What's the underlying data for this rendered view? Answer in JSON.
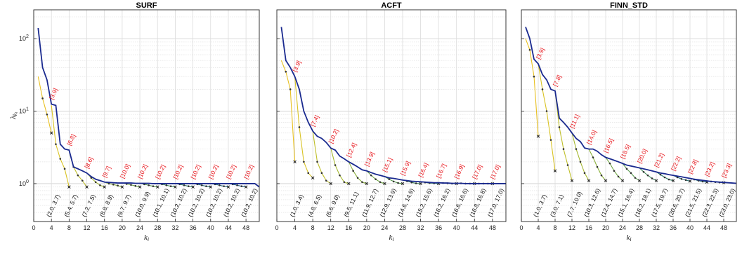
{
  "figure": {
    "ylabel": "λ_{k_i}",
    "xlabel": "k_i",
    "colors": {
      "axis": "#222222",
      "grid": "#d9d9d9",
      "main_line": "#1a2a8f",
      "red_label": "#e8141a",
      "yellow": "#e8c020",
      "green": "#2a8a6a",
      "teal": "#1a7a8a"
    }
  },
  "chart_data": [
    {
      "type": "line",
      "title": "SURF",
      "xlabel": "k_i",
      "ylabel": "λ_{k_i}",
      "xlim": [
        0,
        51
      ],
      "ylim": [
        0.3,
        250
      ],
      "yscale": "log",
      "grid": true,
      "xticks": [
        "0",
        "4",
        "8",
        "12",
        "16",
        "20",
        "24",
        "28",
        "32",
        "36",
        "40",
        "44",
        "48"
      ],
      "yticks": [
        "10^0",
        "10^1",
        "10^2"
      ],
      "main_series": {
        "x": [
          1,
          2,
          3,
          4,
          5,
          6,
          7,
          8,
          9,
          10,
          11,
          12,
          13,
          14,
          15,
          16,
          17,
          18,
          19,
          20,
          21,
          22,
          23,
          24,
          25,
          26,
          27,
          28,
          29,
          30,
          31,
          32,
          33,
          34,
          35,
          36,
          37,
          38,
          39,
          40,
          41,
          42,
          43,
          44,
          45,
          46,
          47,
          48,
          49,
          50,
          51
        ],
        "y": [
          140,
          40,
          27,
          12.5,
          12,
          3.5,
          3.0,
          2.9,
          1.7,
          1.6,
          1.5,
          1.4,
          1.25,
          1.15,
          1.1,
          1.05,
          1.04,
          1.03,
          1.02,
          1.02,
          1.02,
          1.02,
          1.01,
          1.01,
          1.01,
          1.01,
          1.0,
          1.0,
          1.0,
          1.0,
          1.0,
          1.0,
          1.0,
          1.0,
          1.0,
          1.0,
          1.0,
          1.0,
          1.0,
          1.0,
          1.0,
          1.0,
          1.0,
          1.0,
          1.0,
          1.0,
          1.0,
          1.0,
          1.0,
          1.0,
          0.9
        ]
      },
      "branches": [
        {
          "x": [
            1,
            2,
            3,
            4
          ],
          "y": [
            30,
            15,
            9,
            5.0
          ],
          "label": "(2.0, 3.7)"
        },
        {
          "x": [
            4,
            5,
            6,
            7,
            8
          ],
          "y": [
            12,
            3.5,
            2.2,
            1.6,
            0.9
          ],
          "label": "(5.4, 5.7)"
        },
        {
          "x": [
            8,
            9,
            10,
            11,
            12
          ],
          "y": [
            2.9,
            1.7,
            1.3,
            1.1,
            0.9
          ],
          "label": "(7.2, 7.5)"
        },
        {
          "x": [
            12,
            13,
            14,
            15,
            16
          ],
          "y": [
            1.4,
            1.2,
            1.05,
            0.95,
            0.9
          ],
          "label": "(8.8, 8.9)"
        },
        {
          "x": [
            16,
            17,
            18,
            19,
            20
          ],
          "y": [
            1.05,
            1.0,
            0.97,
            0.94,
            0.9
          ],
          "label": "(9.7, 9.7)"
        },
        {
          "x": [
            20,
            21,
            22,
            23,
            24
          ],
          "y": [
            1.02,
            0.99,
            0.96,
            0.93,
            0.9
          ],
          "label": "(10.0, 9.9)"
        },
        {
          "x": [
            24,
            25,
            26,
            27,
            28
          ],
          "y": [
            1.01,
            0.98,
            0.95,
            0.92,
            0.9
          ],
          "label": "(10.1, 10.1)"
        },
        {
          "x": [
            28,
            29,
            30,
            31,
            32
          ],
          "y": [
            1.0,
            0.98,
            0.95,
            0.92,
            0.9
          ],
          "label": "(10.2, 10.2)"
        },
        {
          "x": [
            32,
            33,
            34,
            35,
            36
          ],
          "y": [
            1.0,
            0.98,
            0.95,
            0.92,
            0.9
          ],
          "label": "(10.2, 10.2)"
        },
        {
          "x": [
            36,
            37,
            38,
            39,
            40
          ],
          "y": [
            1.0,
            0.98,
            0.95,
            0.92,
            0.9
          ],
          "label": "(10.2, 10.2)"
        },
        {
          "x": [
            40,
            41,
            42,
            43,
            44
          ],
          "y": [
            1.0,
            0.98,
            0.95,
            0.92,
            0.9
          ],
          "label": "(10.2, 10.2)"
        },
        {
          "x": [
            44,
            45,
            46,
            47,
            48
          ],
          "y": [
            1.0,
            0.98,
            0.95,
            0.92,
            0.9
          ],
          "label": "(10.2, 10.2)"
        }
      ],
      "red_labels": [
        {
          "x": 4,
          "text": "[3.9]"
        },
        {
          "x": 8,
          "text": "[6.8]"
        },
        {
          "x": 12,
          "text": "[8.6]"
        },
        {
          "x": 16,
          "text": "[9.7]"
        },
        {
          "x": 20,
          "text": "[10.0]"
        },
        {
          "x": 24,
          "text": "[10.2]"
        },
        {
          "x": 28,
          "text": "[10.2]"
        },
        {
          "x": 32,
          "text": "[10.2]"
        },
        {
          "x": 36,
          "text": "[10.2]"
        },
        {
          "x": 40,
          "text": "[10.2]"
        },
        {
          "x": 44,
          "text": "[10.2]"
        },
        {
          "x": 48,
          "text": "[10.2]"
        }
      ]
    },
    {
      "type": "line",
      "title": "ACFT",
      "xlabel": "k_i",
      "ylabel": "",
      "xlim": [
        0,
        51
      ],
      "ylim": [
        0.3,
        250
      ],
      "yscale": "log",
      "grid": true,
      "xticks": [
        "0",
        "4",
        "8",
        "12",
        "16",
        "20",
        "24",
        "28",
        "32",
        "36",
        "40",
        "44",
        "48"
      ],
      "yticks": [],
      "main_series": {
        "x": [
          1,
          2,
          3,
          4,
          5,
          6,
          7,
          8,
          9,
          10,
          11,
          12,
          13,
          14,
          15,
          16,
          17,
          18,
          19,
          20,
          21,
          22,
          23,
          24,
          25,
          26,
          27,
          28,
          29,
          30,
          31,
          32,
          33,
          34,
          35,
          36,
          37,
          38,
          39,
          40,
          41,
          42,
          43,
          44,
          45,
          46,
          47,
          48,
          49,
          50,
          51
        ],
        "y": [
          145,
          50,
          40,
          30,
          20,
          10,
          7,
          5.3,
          4.5,
          4.2,
          3.7,
          3.1,
          2.9,
          2.4,
          2.2,
          2.0,
          1.85,
          1.7,
          1.55,
          1.5,
          1.42,
          1.35,
          1.3,
          1.25,
          1.2,
          1.18,
          1.15,
          1.12,
          1.1,
          1.08,
          1.07,
          1.06,
          1.05,
          1.04,
          1.03,
          1.03,
          1.02,
          1.02,
          1.01,
          1.01,
          1.01,
          1.0,
          1.0,
          1.0,
          1.0,
          1.0,
          1.0,
          1.0,
          1.0,
          1.0,
          1.0
        ]
      },
      "branches": [
        {
          "x": [
            1,
            2,
            3,
            4
          ],
          "y": [
            50,
            35,
            20,
            2.0
          ],
          "label": "(1.0, 3.4)"
        },
        {
          "x": [
            4,
            5,
            6,
            7,
            8
          ],
          "y": [
            30,
            6,
            2.0,
            1.4,
            1.2
          ],
          "label": "(4.8, 6.5)"
        },
        {
          "x": [
            8,
            9,
            10,
            11,
            12
          ],
          "y": [
            5.3,
            2.0,
            1.4,
            1.1,
            1.0
          ],
          "label": "(6.6, 9.0)"
        },
        {
          "x": [
            12,
            13,
            14,
            15,
            16
          ],
          "y": [
            3.1,
            1.8,
            1.3,
            1.05,
            1.0
          ],
          "label": "(9.5, 11.1)"
        },
        {
          "x": [
            16,
            17,
            18,
            19,
            20
          ],
          "y": [
            2.0,
            1.5,
            1.2,
            1.05,
            1.0
          ],
          "label": "(11.9, 12.7)"
        },
        {
          "x": [
            20,
            21,
            22,
            23,
            24
          ],
          "y": [
            1.5,
            1.3,
            1.15,
            1.05,
            1.0
          ],
          "label": "(12.9, 13.9)"
        },
        {
          "x": [
            24,
            25,
            26,
            27,
            28
          ],
          "y": [
            1.25,
            1.15,
            1.07,
            1.02,
            1.0
          ],
          "label": "(14.6, 14.9)"
        },
        {
          "x": [
            28,
            29,
            30,
            31,
            32
          ],
          "y": [
            1.12,
            1.08,
            1.04,
            1.01,
            1.0
          ],
          "label": "(15.2, 15.6)"
        },
        {
          "x": [
            32,
            33,
            34,
            35,
            36
          ],
          "y": [
            1.06,
            1.04,
            1.02,
            1.01,
            1.0
          ],
          "label": "(16.2, 16.2)"
        },
        {
          "x": [
            36,
            37,
            38,
            39,
            40
          ],
          "y": [
            1.03,
            1.02,
            1.01,
            1.0,
            1.0
          ],
          "label": "(16.6, 16.6)"
        },
        {
          "x": [
            40,
            41,
            42,
            43,
            44
          ],
          "y": [
            1.01,
            1.01,
            1.0,
            1.0,
            1.0
          ],
          "label": "(16.8, 16.8)"
        },
        {
          "x": [
            44,
            45,
            46,
            47,
            48
          ],
          "y": [
            1.0,
            1.0,
            1.0,
            1.0,
            1.0
          ],
          "label": "(17.0, 17.0)"
        }
      ],
      "red_labels": [
        {
          "x": 4,
          "text": "[3.9]"
        },
        {
          "x": 8,
          "text": "[7.4]"
        },
        {
          "x": 12,
          "text": "[10.2]"
        },
        {
          "x": 16,
          "text": "[12.4]"
        },
        {
          "x": 20,
          "text": "[13.9]"
        },
        {
          "x": 24,
          "text": "[15.1]"
        },
        {
          "x": 28,
          "text": "[15.9]"
        },
        {
          "x": 32,
          "text": "[16.4]"
        },
        {
          "x": 36,
          "text": "[16.7]"
        },
        {
          "x": 40,
          "text": "[16.9]"
        },
        {
          "x": 44,
          "text": "[17.0]"
        },
        {
          "x": 48,
          "text": "[17.0]"
        }
      ]
    },
    {
      "type": "line",
      "title": "FINN_STD",
      "xlabel": "k_i",
      "ylabel": "",
      "xlim": [
        0,
        51
      ],
      "ylim": [
        0.3,
        250
      ],
      "yscale": "log",
      "grid": true,
      "xticks": [
        "0",
        "4",
        "8",
        "12",
        "16",
        "20",
        "24",
        "28",
        "32",
        "36",
        "40",
        "44",
        "48"
      ],
      "yticks": [],
      "main_series": {
        "x": [
          1,
          2,
          3,
          4,
          5,
          6,
          7,
          8,
          9,
          10,
          11,
          12,
          13,
          14,
          15,
          16,
          17,
          18,
          19,
          20,
          21,
          22,
          23,
          24,
          25,
          26,
          27,
          28,
          29,
          30,
          31,
          32,
          33,
          34,
          35,
          36,
          37,
          38,
          39,
          40,
          41,
          42,
          43,
          44,
          45,
          46,
          47,
          48,
          49,
          50,
          51
        ],
        "y": [
          145,
          100,
          52,
          45,
          32,
          27,
          20,
          19,
          8,
          7,
          6,
          5,
          4.2,
          3.8,
          3.1,
          3.0,
          3.0,
          2.8,
          2.5,
          2.3,
          2.2,
          2.1,
          2.0,
          1.9,
          1.8,
          1.75,
          1.7,
          1.65,
          1.6,
          1.55,
          1.5,
          1.45,
          1.4,
          1.37,
          1.33,
          1.3,
          1.27,
          1.24,
          1.21,
          1.18,
          1.15,
          1.13,
          1.11,
          1.09,
          1.07,
          1.06,
          1.05,
          1.04,
          1.03,
          1.02,
          1.01
        ]
      },
      "branches": [
        {
          "x": [
            1,
            2,
            3,
            4
          ],
          "y": [
            100,
            70,
            30,
            4.5
          ],
          "label": "(1.0, 3.7)"
        },
        {
          "x": [
            4,
            5,
            6,
            7,
            8
          ],
          "y": [
            45,
            20,
            10,
            4,
            1.5
          ],
          "label": "(3.0, 7.1)"
        },
        {
          "x": [
            8,
            9,
            10,
            11,
            12
          ],
          "y": [
            19,
            6,
            3,
            1.8,
            1.1
          ],
          "label": "(7.7, 10.0)"
        },
        {
          "x": [
            12,
            13,
            14,
            15,
            16
          ],
          "y": [
            5,
            3,
            2,
            1.4,
            1.1
          ],
          "label": "(10.3, 12.6)"
        },
        {
          "x": [
            16,
            17,
            18,
            19,
            20
          ],
          "y": [
            3.0,
            2.3,
            1.7,
            1.3,
            1.1
          ],
          "label": "(12.4, 14.7)"
        },
        {
          "x": [
            20,
            21,
            22,
            23,
            24
          ],
          "y": [
            2.3,
            1.9,
            1.5,
            1.25,
            1.1
          ],
          "label": "(15.1, 16.4)"
        },
        {
          "x": [
            24,
            25,
            26,
            27,
            28
          ],
          "y": [
            1.9,
            1.6,
            1.4,
            1.2,
            1.1
          ],
          "label": "(16.2, 18.1)"
        },
        {
          "x": [
            28,
            29,
            30,
            31,
            32
          ],
          "y": [
            1.65,
            1.45,
            1.3,
            1.18,
            1.1
          ],
          "label": "(17.5, 19.7)"
        },
        {
          "x": [
            32,
            33,
            34,
            35,
            36
          ],
          "y": [
            1.45,
            1.33,
            1.22,
            1.14,
            1.1
          ],
          "label": "(20.6, 20.7)"
        },
        {
          "x": [
            36,
            37,
            38,
            39,
            40
          ],
          "y": [
            1.3,
            1.22,
            1.16,
            1.12,
            1.08
          ],
          "label": "(21.5, 21.5)"
        },
        {
          "x": [
            40,
            41,
            42,
            43,
            44
          ],
          "y": [
            1.18,
            1.14,
            1.1,
            1.07,
            1.05
          ],
          "label": "(22.3, 22.3)"
        },
        {
          "x": [
            44,
            45,
            46,
            47,
            48
          ],
          "y": [
            1.09,
            1.07,
            1.05,
            1.04,
            1.03
          ],
          "label": "(23.0, 23.0)"
        }
      ],
      "red_labels": [
        {
          "x": 4,
          "text": "[3.9]"
        },
        {
          "x": 8,
          "text": "[7.8]"
        },
        {
          "x": 12,
          "text": "[11.1]"
        },
        {
          "x": 16,
          "text": "[14.0]"
        },
        {
          "x": 20,
          "text": "[16.5]"
        },
        {
          "x": 24,
          "text": "[18.5]"
        },
        {
          "x": 28,
          "text": "[20.0]"
        },
        {
          "x": 32,
          "text": "[21.2]"
        },
        {
          "x": 36,
          "text": "[22.2]"
        },
        {
          "x": 40,
          "text": "[22.8]"
        },
        {
          "x": 44,
          "text": "[23.2]"
        },
        {
          "x": 48,
          "text": "[23.3]"
        }
      ]
    }
  ]
}
